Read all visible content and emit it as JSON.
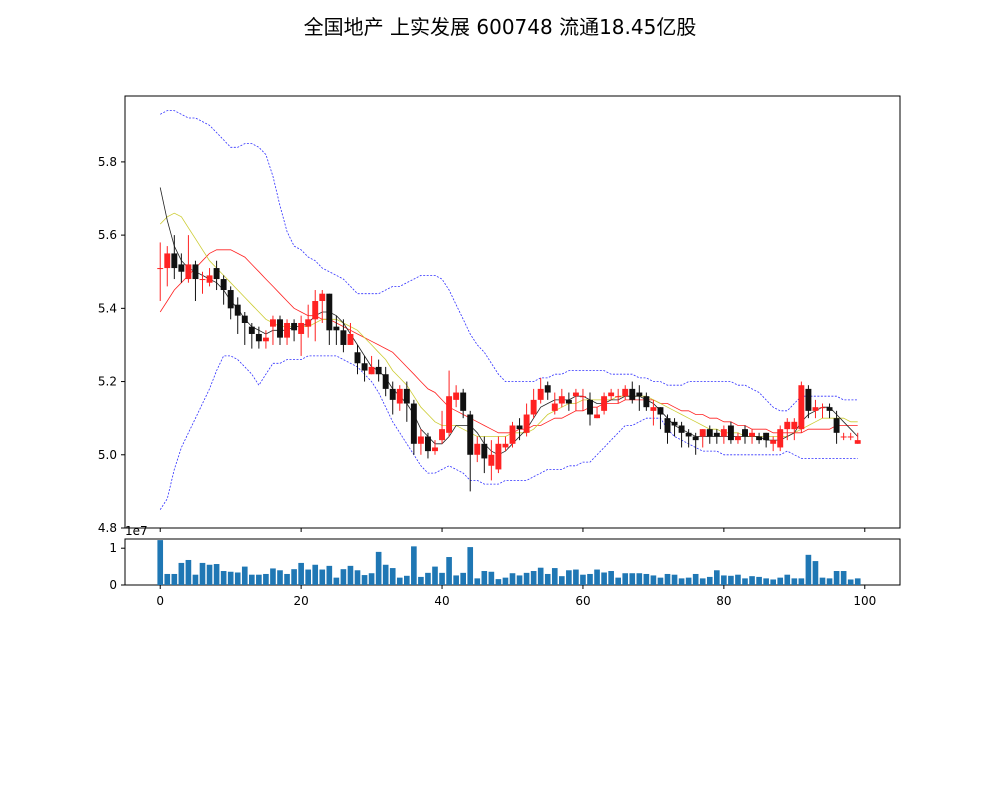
{
  "title": "全国地产 上实发展 600748 流通18.45亿股",
  "chart_data": [
    {
      "type": "candlestick",
      "xlim": [
        -5,
        105
      ],
      "ylim": [
        4.8,
        5.98
      ],
      "yticks": [
        "4.8",
        "5.0",
        "5.2",
        "5.4",
        "5.6",
        "5.8"
      ],
      "candles": [
        [
          5.51,
          5.51,
          5.58,
          5.42
        ],
        [
          5.51,
          5.55,
          5.57,
          5.46
        ],
        [
          5.55,
          5.51,
          5.6,
          5.48
        ],
        [
          5.52,
          5.5,
          5.55,
          5.47
        ],
        [
          5.48,
          5.52,
          5.6,
          5.47
        ],
        [
          5.52,
          5.48,
          5.53,
          5.42
        ],
        [
          5.48,
          5.48,
          5.5,
          5.44
        ],
        [
          5.47,
          5.49,
          5.51,
          5.46
        ],
        [
          5.51,
          5.48,
          5.53,
          5.45
        ],
        [
          5.48,
          5.45,
          5.49,
          5.41
        ],
        [
          5.45,
          5.4,
          5.46,
          5.37
        ],
        [
          5.41,
          5.38,
          5.43,
          5.33
        ],
        [
          5.38,
          5.36,
          5.39,
          5.3
        ],
        [
          5.35,
          5.33,
          5.36,
          5.29
        ],
        [
          5.33,
          5.31,
          5.35,
          5.29
        ],
        [
          5.31,
          5.32,
          5.34,
          5.29
        ],
        [
          5.35,
          5.37,
          5.38,
          5.3
        ],
        [
          5.37,
          5.32,
          5.38,
          5.3
        ],
        [
          5.32,
          5.36,
          5.37,
          5.3
        ],
        [
          5.36,
          5.34,
          5.37,
          5.31
        ],
        [
          5.33,
          5.36,
          5.38,
          5.27
        ],
        [
          5.35,
          5.37,
          5.41,
          5.32
        ],
        [
          5.37,
          5.42,
          5.45,
          5.31
        ],
        [
          5.42,
          5.44,
          5.45,
          5.36
        ],
        [
          5.44,
          5.34,
          5.44,
          5.3
        ],
        [
          5.35,
          5.34,
          5.38,
          5.3
        ],
        [
          5.34,
          5.3,
          5.37,
          5.28
        ],
        [
          5.3,
          5.33,
          5.36,
          5.3
        ],
        [
          5.28,
          5.25,
          5.3,
          5.22
        ],
        [
          5.25,
          5.23,
          5.27,
          5.2
        ],
        [
          5.22,
          5.24,
          5.27,
          5.22
        ],
        [
          5.24,
          5.22,
          5.26,
          5.2
        ],
        [
          5.22,
          5.18,
          5.24,
          5.16
        ],
        [
          5.18,
          5.15,
          5.2,
          5.11
        ],
        [
          5.14,
          5.18,
          5.19,
          5.12
        ],
        [
          5.18,
          5.14,
          5.2,
          5.09
        ],
        [
          5.14,
          5.03,
          5.15,
          5.0
        ],
        [
          5.03,
          5.05,
          5.07,
          5.0
        ],
        [
          5.05,
          5.01,
          5.06,
          4.99
        ],
        [
          5.01,
          5.02,
          5.04,
          5.0
        ],
        [
          5.04,
          5.07,
          5.12,
          5.03
        ],
        [
          5.06,
          5.16,
          5.23,
          5.05
        ],
        [
          5.15,
          5.17,
          5.19,
          5.13
        ],
        [
          5.17,
          5.12,
          5.18,
          5.1
        ],
        [
          5.11,
          5.0,
          5.12,
          4.9
        ],
        [
          5.0,
          5.03,
          5.05,
          4.98
        ],
        [
          5.03,
          4.99,
          5.05,
          4.95
        ],
        [
          4.97,
          5.0,
          5.04,
          4.93
        ],
        [
          4.96,
          5.03,
          5.05,
          4.95
        ],
        [
          5.02,
          5.03,
          5.05,
          5.01
        ],
        [
          5.03,
          5.08,
          5.09,
          5.02
        ],
        [
          5.08,
          5.07,
          5.1,
          5.04
        ],
        [
          5.06,
          5.11,
          5.14,
          5.05
        ],
        [
          5.11,
          5.15,
          5.18,
          5.1
        ],
        [
          5.15,
          5.18,
          5.21,
          5.14
        ],
        [
          5.19,
          5.17,
          5.2,
          5.15
        ],
        [
          5.12,
          5.14,
          5.17,
          5.11
        ],
        [
          5.14,
          5.16,
          5.18,
          5.13
        ],
        [
          5.15,
          5.14,
          5.17,
          5.12
        ],
        [
          5.16,
          5.17,
          5.18,
          5.12
        ],
        [
          5.16,
          5.16,
          5.18,
          5.12
        ],
        [
          5.15,
          5.11,
          5.17,
          5.08
        ],
        [
          5.1,
          5.11,
          5.13,
          5.1
        ],
        [
          5.12,
          5.16,
          5.17,
          5.11
        ],
        [
          5.16,
          5.17,
          5.18,
          5.15
        ],
        [
          5.16,
          5.16,
          5.18,
          5.14
        ],
        [
          5.16,
          5.18,
          5.19,
          5.15
        ],
        [
          5.18,
          5.15,
          5.2,
          5.14
        ],
        [
          5.17,
          5.16,
          5.19,
          5.12
        ],
        [
          5.16,
          5.13,
          5.17,
          5.12
        ],
        [
          5.12,
          5.13,
          5.15,
          5.08
        ],
        [
          5.13,
          5.11,
          5.13,
          5.07
        ],
        [
          5.1,
          5.06,
          5.11,
          5.03
        ],
        [
          5.09,
          5.08,
          5.1,
          5.05
        ],
        [
          5.08,
          5.06,
          5.09,
          5.02
        ],
        [
          5.06,
          5.05,
          5.07,
          5.02
        ],
        [
          5.05,
          5.04,
          5.06,
          5.0
        ],
        [
          5.05,
          5.07,
          5.07,
          5.02
        ],
        [
          5.07,
          5.05,
          5.08,
          5.03
        ],
        [
          5.06,
          5.05,
          5.07,
          5.03
        ],
        [
          5.05,
          5.07,
          5.08,
          5.03
        ],
        [
          5.08,
          5.04,
          5.09,
          5.03
        ],
        [
          5.04,
          5.05,
          5.06,
          5.03
        ],
        [
          5.07,
          5.05,
          5.08,
          5.03
        ],
        [
          5.05,
          5.06,
          5.07,
          5.03
        ],
        [
          5.05,
          5.04,
          5.06,
          5.03
        ],
        [
          5.06,
          5.04,
          5.06,
          5.02
        ],
        [
          5.03,
          5.04,
          5.05,
          5.01
        ],
        [
          5.02,
          5.07,
          5.08,
          5.01
        ],
        [
          5.07,
          5.09,
          5.1,
          5.04
        ],
        [
          5.07,
          5.09,
          5.1,
          5.04
        ],
        [
          5.07,
          5.19,
          5.2,
          5.06
        ],
        [
          5.18,
          5.12,
          5.19,
          5.1
        ],
        [
          5.12,
          5.13,
          5.15,
          5.1
        ],
        [
          5.13,
          5.13,
          5.14,
          5.1
        ],
        [
          5.13,
          5.12,
          5.14,
          5.1
        ],
        [
          5.1,
          5.06,
          5.12,
          5.03
        ],
        [
          5.05,
          5.05,
          5.06,
          5.04
        ],
        [
          5.05,
          5.05,
          5.06,
          5.04
        ],
        [
          5.03,
          5.04,
          5.06,
          5.03
        ]
      ],
      "ma_short": {
        "color": "#222222",
        "values": [
          5.73,
          5.64,
          5.57,
          5.53,
          5.51,
          5.5,
          5.49,
          5.48,
          5.47,
          5.45,
          5.42,
          5.4,
          5.37,
          5.35,
          5.34,
          5.33,
          5.34,
          5.34,
          5.34,
          5.35,
          5.35,
          5.36,
          5.38,
          5.39,
          5.39,
          5.38,
          5.36,
          5.33,
          5.3,
          5.27,
          5.24,
          5.23,
          5.21,
          5.18,
          5.16,
          5.14,
          5.11,
          5.07,
          5.05,
          5.03,
          5.03,
          5.05,
          5.08,
          5.08,
          5.08,
          5.06,
          5.03,
          5.01,
          5.0,
          5.01,
          5.03,
          5.05,
          5.07,
          5.1,
          5.13,
          5.14,
          5.15,
          5.15,
          5.15,
          5.16,
          5.16,
          5.15,
          5.14,
          5.14,
          5.15,
          5.15,
          5.16,
          5.16,
          5.16,
          5.15,
          5.14,
          5.12,
          5.1,
          5.08,
          5.07,
          5.06,
          5.05,
          5.05,
          5.05,
          5.05,
          5.05,
          5.05,
          5.05,
          5.05,
          5.05,
          5.05,
          5.04,
          5.04,
          5.04,
          5.05,
          5.06,
          5.09,
          5.11,
          5.12,
          5.13,
          5.13,
          5.11,
          5.09,
          5.07,
          5.05
        ]
      },
      "ma_mid": {
        "color": "#cccc33",
        "values": [
          5.63,
          5.65,
          5.66,
          5.65,
          5.62,
          5.59,
          5.56,
          5.53,
          5.51,
          5.49,
          5.47,
          5.45,
          5.43,
          5.41,
          5.39,
          5.37,
          5.36,
          5.35,
          5.35,
          5.35,
          5.35,
          5.35,
          5.36,
          5.37,
          5.37,
          5.37,
          5.36,
          5.35,
          5.34,
          5.32,
          5.3,
          5.28,
          5.26,
          5.23,
          5.21,
          5.19,
          5.16,
          5.13,
          5.11,
          5.09,
          5.08,
          5.08,
          5.08,
          5.07,
          5.06,
          5.05,
          5.05,
          5.05,
          5.05,
          5.05,
          5.06,
          5.06,
          5.06,
          5.07,
          5.09,
          5.11,
          5.12,
          5.13,
          5.14,
          5.14,
          5.15,
          5.15,
          5.15,
          5.15,
          5.15,
          5.16,
          5.16,
          5.16,
          5.16,
          5.16,
          5.15,
          5.14,
          5.13,
          5.12,
          5.11,
          5.1,
          5.09,
          5.08,
          5.07,
          5.07,
          5.06,
          5.06,
          5.06,
          5.05,
          5.05,
          5.05,
          5.05,
          5.05,
          5.05,
          5.05,
          5.06,
          5.07,
          5.08,
          5.09,
          5.1,
          5.1,
          5.1,
          5.1,
          5.09,
          5.09
        ]
      },
      "ma_long": {
        "color": "#ff2020",
        "values": [
          5.39,
          5.42,
          5.45,
          5.47,
          5.49,
          5.51,
          5.53,
          5.55,
          5.56,
          5.56,
          5.56,
          5.55,
          5.54,
          5.52,
          5.5,
          5.48,
          5.46,
          5.44,
          5.42,
          5.4,
          5.39,
          5.38,
          5.38,
          5.37,
          5.37,
          5.36,
          5.35,
          5.34,
          5.33,
          5.32,
          5.31,
          5.3,
          5.29,
          5.28,
          5.26,
          5.24,
          5.22,
          5.2,
          5.18,
          5.17,
          5.15,
          5.13,
          5.12,
          5.11,
          5.1,
          5.09,
          5.08,
          5.07,
          5.06,
          5.06,
          5.06,
          5.07,
          5.07,
          5.08,
          5.08,
          5.09,
          5.1,
          5.1,
          5.11,
          5.12,
          5.12,
          5.13,
          5.13,
          5.14,
          5.14,
          5.14,
          5.15,
          5.15,
          5.15,
          5.15,
          5.15,
          5.14,
          5.14,
          5.13,
          5.12,
          5.12,
          5.11,
          5.11,
          5.1,
          5.1,
          5.09,
          5.09,
          5.08,
          5.08,
          5.07,
          5.07,
          5.07,
          5.06,
          5.06,
          5.06,
          5.06,
          5.06,
          5.07,
          5.07,
          5.07,
          5.07,
          5.08,
          5.08,
          5.08,
          5.08
        ]
      },
      "boll_upper": {
        "color": "#3030ff",
        "values": [
          5.93,
          5.94,
          5.94,
          5.93,
          5.92,
          5.92,
          5.91,
          5.9,
          5.88,
          5.86,
          5.84,
          5.84,
          5.85,
          5.85,
          5.84,
          5.82,
          5.76,
          5.68,
          5.61,
          5.57,
          5.56,
          5.54,
          5.53,
          5.51,
          5.5,
          5.49,
          5.48,
          5.46,
          5.44,
          5.44,
          5.44,
          5.44,
          5.45,
          5.46,
          5.46,
          5.47,
          5.48,
          5.49,
          5.49,
          5.49,
          5.48,
          5.45,
          5.41,
          5.37,
          5.33,
          5.3,
          5.28,
          5.25,
          5.22,
          5.2,
          5.2,
          5.2,
          5.2,
          5.2,
          5.21,
          5.21,
          5.22,
          5.22,
          5.23,
          5.23,
          5.23,
          5.23,
          5.23,
          5.23,
          5.22,
          5.22,
          5.22,
          5.22,
          5.21,
          5.21,
          5.2,
          5.2,
          5.19,
          5.19,
          5.19,
          5.2,
          5.2,
          5.2,
          5.2,
          5.2,
          5.2,
          5.2,
          5.19,
          5.19,
          5.18,
          5.17,
          5.15,
          5.13,
          5.12,
          5.12,
          5.14,
          5.16,
          5.16,
          5.16,
          5.16,
          5.16,
          5.16,
          5.15,
          5.15,
          5.15
        ]
      },
      "boll_lower": {
        "color": "#3030ff",
        "values": [
          4.85,
          4.88,
          4.96,
          5.02,
          5.06,
          5.1,
          5.14,
          5.18,
          5.23,
          5.27,
          5.27,
          5.26,
          5.24,
          5.22,
          5.19,
          5.22,
          5.25,
          5.25,
          5.26,
          5.26,
          5.26,
          5.27,
          5.27,
          5.27,
          5.27,
          5.27,
          5.26,
          5.25,
          5.24,
          5.22,
          5.2,
          5.17,
          5.13,
          5.09,
          5.06,
          5.03,
          5.0,
          4.97,
          4.95,
          4.95,
          4.96,
          4.97,
          4.96,
          4.95,
          4.93,
          4.93,
          4.92,
          4.92,
          4.92,
          4.93,
          4.93,
          4.93,
          4.93,
          4.94,
          4.95,
          4.96,
          4.96,
          4.96,
          4.97,
          4.97,
          4.98,
          4.98,
          5.0,
          5.02,
          5.04,
          5.06,
          5.08,
          5.08,
          5.09,
          5.1,
          5.1,
          5.1,
          5.07,
          5.05,
          5.04,
          5.03,
          5.02,
          5.01,
          5.01,
          5.01,
          5.0,
          5.0,
          5.0,
          5.0,
          5.0,
          5.0,
          5.0,
          5.0,
          5.0,
          5.01,
          5.0,
          4.99,
          4.99,
          4.99,
          4.99,
          4.99,
          4.99,
          4.99,
          4.99,
          4.99
        ]
      },
      "up_color": "#ff2222",
      "down_color": "#111111"
    },
    {
      "type": "bar",
      "xlim": [
        -5,
        105
      ],
      "ylim": [
        0,
        1.25
      ],
      "yticks": [
        "0",
        "1"
      ],
      "xticks": [
        "0",
        "20",
        "40",
        "60",
        "80",
        "100"
      ],
      "offset_label": "1e7",
      "bar_color": "#1f77b4",
      "volumes_1e7": [
        1.22,
        0.3,
        0.3,
        0.6,
        0.68,
        0.28,
        0.6,
        0.55,
        0.57,
        0.38,
        0.36,
        0.34,
        0.5,
        0.28,
        0.28,
        0.3,
        0.45,
        0.4,
        0.3,
        0.43,
        0.6,
        0.42,
        0.55,
        0.42,
        0.52,
        0.2,
        0.43,
        0.52,
        0.4,
        0.27,
        0.32,
        0.9,
        0.55,
        0.46,
        0.2,
        0.25,
        1.05,
        0.22,
        0.33,
        0.5,
        0.33,
        0.76,
        0.26,
        0.33,
        1.03,
        0.18,
        0.38,
        0.36,
        0.16,
        0.2,
        0.32,
        0.26,
        0.33,
        0.38,
        0.47,
        0.3,
        0.46,
        0.24,
        0.4,
        0.42,
        0.28,
        0.3,
        0.42,
        0.34,
        0.38,
        0.2,
        0.32,
        0.32,
        0.32,
        0.3,
        0.26,
        0.2,
        0.3,
        0.28,
        0.18,
        0.2,
        0.3,
        0.18,
        0.22,
        0.4,
        0.26,
        0.25,
        0.28,
        0.18,
        0.24,
        0.22,
        0.18,
        0.15,
        0.2,
        0.28,
        0.18,
        0.18,
        0.82,
        0.65,
        0.2,
        0.18,
        0.38,
        0.38,
        0.15,
        0.18
      ]
    }
  ]
}
